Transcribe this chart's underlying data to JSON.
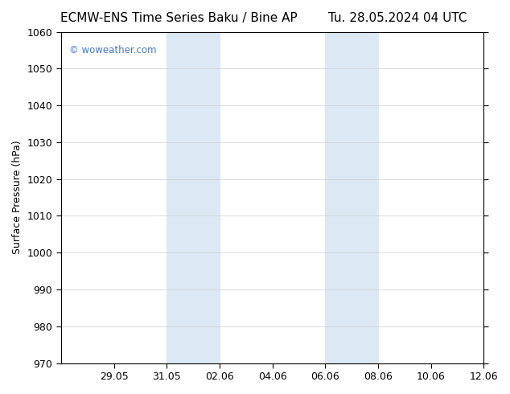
{
  "title_left": "ECMW-ENS Time Series Baku / Bine AP",
  "title_right": "Tu. 28.05.2024 04 UTC",
  "ylabel": "Surface Pressure (hPa)",
  "ylim": [
    970,
    1060
  ],
  "yticks": [
    970,
    980,
    990,
    1000,
    1010,
    1020,
    1030,
    1040,
    1050,
    1060
  ],
  "xlim_start": "2024-05-28",
  "xlim_end": "2024-06-13",
  "xtick_labels": [
    "29.05",
    "31.05",
    "02.06",
    "04.06",
    "06.06",
    "08.06",
    "10.06",
    "12.06"
  ],
  "xtick_positions_days": [
    1,
    3,
    5,
    7,
    9,
    11,
    13,
    15
  ],
  "shade_regions": [
    {
      "start_day": 4,
      "end_day": 6
    },
    {
      "start_day": 10,
      "end_day": 12
    }
  ],
  "shade_color": "#dce9f5",
  "background_color": "#ffffff",
  "plot_bg_color": "#ffffff",
  "watermark_text": "© woweather.com",
  "watermark_color": "#4477cc",
  "title_fontsize": 11,
  "tick_fontsize": 9,
  "ylabel_fontsize": 9,
  "grid_color": "#cccccc",
  "border_color": "#000000"
}
